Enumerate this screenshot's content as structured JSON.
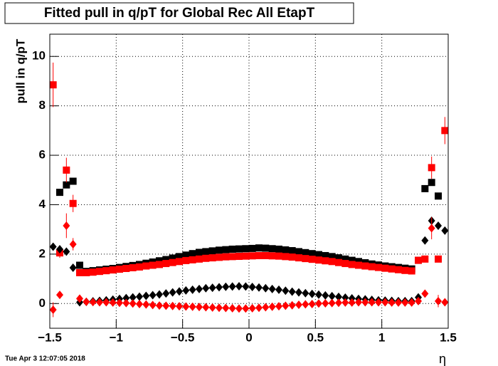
{
  "chart_data": {
    "type": "scatter",
    "title": "Fitted pull in q/pT for Global Rec All EtapT",
    "y_label": "pull in q/pT",
    "x_label": "η",
    "timestamp": "Tue Apr  3 12:07:05 2018",
    "grid": true,
    "xlim": [
      -1.5,
      1.5
    ],
    "ylim": [
      -1,
      10.9
    ],
    "xticks": [
      {
        "value": -1.5,
        "label": "−1.5"
      },
      {
        "value": -1,
        "label": "−1"
      },
      {
        "value": -0.5,
        "label": "−0.5"
      },
      0,
      0.5,
      1,
      1.5
    ],
    "yticks": [
      0,
      2,
      4,
      6,
      8,
      10
    ],
    "x": [
      -1.475,
      -1.425,
      -1.375,
      -1.325,
      -1.275,
      -1.225,
      -1.175,
      -1.125,
      -1.075,
      -1.025,
      -0.975,
      -0.925,
      -0.875,
      -0.825,
      -0.775,
      -0.725,
      -0.675,
      -0.625,
      -0.575,
      -0.525,
      -0.475,
      -0.425,
      -0.375,
      -0.325,
      -0.275,
      -0.225,
      -0.175,
      -0.125,
      -0.075,
      -0.025,
      0.025,
      0.075,
      0.125,
      0.175,
      0.225,
      0.275,
      0.325,
      0.375,
      0.425,
      0.475,
      0.525,
      0.575,
      0.625,
      0.675,
      0.725,
      0.775,
      0.825,
      0.875,
      0.925,
      0.975,
      1.025,
      1.075,
      1.125,
      1.175,
      1.225,
      1.275,
      1.325,
      1.375,
      1.425,
      1.475
    ],
    "series": [
      {
        "color": "#000000",
        "marker": "square",
        "values": [
          null,
          4.5,
          4.8,
          4.95,
          1.55,
          1.3,
          1.33,
          1.36,
          1.39,
          1.42,
          1.46,
          1.5,
          1.54,
          1.58,
          1.63,
          1.68,
          1.73,
          1.78,
          1.84,
          1.9,
          1.96,
          2.02,
          2.07,
          2.1,
          2.13,
          2.16,
          2.18,
          2.2,
          2.21,
          2.22,
          2.23,
          2.25,
          2.24,
          2.22,
          2.2,
          2.17,
          2.14,
          2.1,
          2.06,
          2.02,
          1.98,
          1.94,
          1.9,
          1.85,
          1.8,
          1.75,
          1.7,
          1.65,
          1.6,
          1.56,
          1.52,
          1.49,
          1.46,
          1.43,
          1.4,
          1.75,
          4.65,
          4.9,
          4.35,
          null
        ]
      },
      {
        "color": "#ff0000",
        "marker": "square",
        "values": [
          8.85,
          2.05,
          5.4,
          4.05,
          1.25,
          1.25,
          1.27,
          1.3,
          1.33,
          1.36,
          1.39,
          1.42,
          1.45,
          1.48,
          1.52,
          1.55,
          1.58,
          1.62,
          1.66,
          1.7,
          1.74,
          1.77,
          1.8,
          1.83,
          1.85,
          1.87,
          1.89,
          1.9,
          1.91,
          1.92,
          1.93,
          1.94,
          1.94,
          1.93,
          1.92,
          1.9,
          1.88,
          1.85,
          1.82,
          1.79,
          1.76,
          1.73,
          1.7,
          1.66,
          1.62,
          1.58,
          1.55,
          1.52,
          1.49,
          1.46,
          1.43,
          1.4,
          1.37,
          1.34,
          1.32,
          1.75,
          1.8,
          5.5,
          1.8,
          7.0
        ],
        "errors": [
          0.9,
          0.2,
          0.5,
          0.35,
          null,
          null,
          null,
          null,
          null,
          null,
          null,
          null,
          null,
          null,
          null,
          null,
          null,
          null,
          null,
          null,
          null,
          null,
          null,
          null,
          null,
          null,
          null,
          null,
          null,
          null,
          null,
          null,
          null,
          null,
          null,
          null,
          null,
          null,
          null,
          null,
          null,
          null,
          null,
          null,
          null,
          null,
          null,
          null,
          null,
          null,
          null,
          null,
          null,
          null,
          null,
          null,
          null,
          0.45,
          null,
          0.55
        ]
      },
      {
        "color": "#000000",
        "marker": "diamond",
        "values": [
          2.3,
          2.2,
          2.1,
          1.45,
          0.05,
          0.07,
          0.09,
          0.11,
          0.13,
          0.16,
          0.19,
          0.22,
          0.25,
          0.28,
          0.31,
          0.34,
          0.37,
          0.41,
          0.45,
          0.49,
          0.53,
          0.56,
          0.59,
          0.62,
          0.64,
          0.66,
          0.68,
          0.69,
          0.7,
          0.69,
          0.67,
          0.65,
          0.62,
          0.59,
          0.56,
          0.52,
          0.48,
          0.45,
          0.42,
          0.39,
          0.36,
          0.33,
          0.3,
          0.27,
          0.24,
          0.21,
          0.19,
          0.17,
          0.15,
          0.13,
          0.12,
          0.11,
          0.1,
          0.1,
          0.1,
          0.25,
          2.55,
          3.35,
          3.15,
          2.95
        ]
      },
      {
        "color": "#ff0000",
        "marker": "diamond",
        "values": [
          -0.25,
          0.35,
          3.15,
          2.4,
          0.2,
          0.07,
          0.06,
          0.05,
          0.05,
          0.04,
          0.03,
          0.02,
          0,
          -0.02,
          -0.04,
          -0.06,
          -0.08,
          -0.09,
          -0.1,
          -0.11,
          -0.12,
          -0.13,
          -0.14,
          -0.15,
          -0.16,
          -0.17,
          -0.18,
          -0.19,
          -0.2,
          -0.2,
          -0.19,
          -0.17,
          -0.15,
          -0.13,
          -0.11,
          -0.09,
          -0.07,
          -0.05,
          -0.03,
          -0.02,
          0,
          0.01,
          0.02,
          0.03,
          0.04,
          0.04,
          0.05,
          0.05,
          0.05,
          0.05,
          0.05,
          0.04,
          0.04,
          0.04,
          0.04,
          0.1,
          0.4,
          3.05,
          0.1,
          0.05
        ],
        "errors": [
          0.3,
          null,
          0.5,
          0.25,
          null,
          null,
          null,
          null,
          null,
          null,
          null,
          null,
          null,
          null,
          null,
          null,
          null,
          null,
          null,
          null,
          null,
          null,
          null,
          null,
          null,
          null,
          null,
          null,
          null,
          null,
          null,
          null,
          null,
          null,
          null,
          null,
          null,
          null,
          null,
          null,
          null,
          null,
          null,
          null,
          null,
          null,
          null,
          null,
          null,
          null,
          null,
          null,
          null,
          null,
          null,
          null,
          null,
          0.45,
          0.25,
          null
        ]
      }
    ]
  }
}
